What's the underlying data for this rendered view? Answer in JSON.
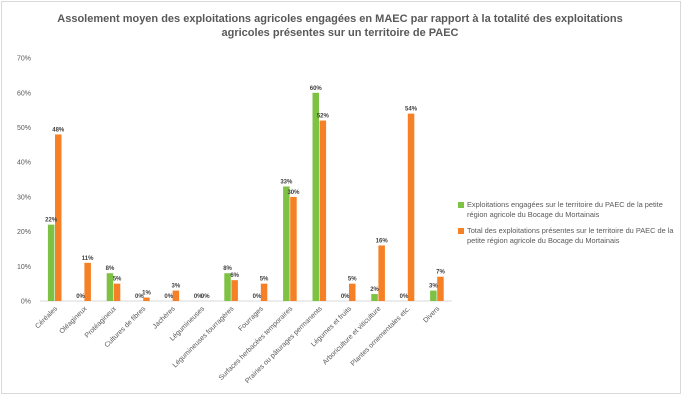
{
  "chart_data": {
    "type": "bar",
    "title": "Assolement moyen des exploitations agricoles engagées en MAEC par rapport à la totalité des exploitations agricoles présentes sur un territoire de PAEC",
    "categories": [
      "Céréales",
      "Oléagineux",
      "Protéagineux",
      "Cultures de fibres",
      "Jachères",
      "Légumineuses",
      "Légumineuses fourragères",
      "Fourrages",
      "Surfaces herbacées temporaires",
      "Prairies ou pâturages permanents",
      "Légumes et fruits",
      "Arboriculture et viticulture",
      "Plantes ornementales etc.",
      "Divers"
    ],
    "series": [
      {
        "name": "Exploitations engagées sur le territoire du PAEC de la petite région agricole du Bocage du Mortainais",
        "color": "#7dc242",
        "values": [
          22,
          0,
          8,
          0,
          0,
          0,
          8,
          0,
          33,
          60,
          0,
          2,
          0,
          3
        ],
        "labels": [
          "22%",
          "0%",
          "8%",
          "0%",
          "0%",
          "0%",
          "8%",
          "0%",
          "33%",
          "60%",
          "0%",
          "2%",
          "0%",
          "3%"
        ]
      },
      {
        "name": "Total des exploitations présentes sur le territoire du PAEC de la petite région agricole du Bocage du Mortainais",
        "color": "#f58025",
        "values": [
          48,
          11,
          5,
          1,
          3,
          0,
          6,
          5,
          30,
          52,
          5,
          16,
          54,
          7
        ],
        "labels": [
          "48%",
          "11%",
          "5%",
          "1%",
          "3%",
          "0%",
          "6%",
          "5%",
          "30%",
          "52%",
          "5%",
          "16%",
          "54%",
          "7%"
        ]
      }
    ],
    "yticks": [
      "0%",
      "10%",
      "20%",
      "30%",
      "40%",
      "50%",
      "60%",
      "70%"
    ],
    "ylim": [
      0,
      70
    ],
    "grid": false,
    "legend": "right"
  }
}
